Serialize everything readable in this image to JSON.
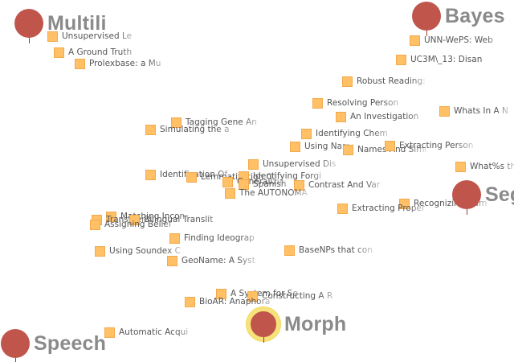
{
  "topics": [
    {
      "name": "Multili",
      "selected": false
    },
    {
      "name": "Bayes",
      "selected": false
    },
    {
      "name": "Seg",
      "selected": false
    },
    {
      "name": "Speech",
      "selected": false
    },
    {
      "name": "Morph",
      "selected": true
    }
  ],
  "documents": [
    {
      "title": "Unsupervised Le"
    },
    {
      "title": "A Ground Truth"
    },
    {
      "title": "Prolexbase: a Mu"
    },
    {
      "title": "UNN-WePS: Web"
    },
    {
      "title": "UC3M\\_13: Disan"
    },
    {
      "title": "Robust Reading:"
    },
    {
      "title": "Resolving Person"
    },
    {
      "title": "An Investigation"
    },
    {
      "title": "Whats In A N"
    },
    {
      "title": "Tagging Gene An"
    },
    {
      "title": "Simulating the a"
    },
    {
      "title": "Identifying Chem"
    },
    {
      "title": "Using Names A"
    },
    {
      "title": "Names And Simi"
    },
    {
      "title": "Extracting Person"
    },
    {
      "title": "Unsupervised Dis"
    },
    {
      "title": "What%s th"
    },
    {
      "title": "Identification Of"
    },
    {
      "title": "Lemmatization Of"
    },
    {
      "title": "Identifying Forgi"
    },
    {
      "title": "Generalizing"
    },
    {
      "title": "Spanish"
    },
    {
      "title": "Contrast And Var"
    },
    {
      "title": "The AUTONOMA"
    },
    {
      "title": "Recognizing Nam"
    },
    {
      "title": "Extracting Proper"
    },
    {
      "title": "Matching Incon"
    },
    {
      "title": "Transliteration"
    },
    {
      "title": "Bilingual Translit"
    },
    {
      "title": "Assigning Belief"
    },
    {
      "title": "Finding Ideograp"
    },
    {
      "title": "Using Soundex C"
    },
    {
      "title": "BaseNPs that con"
    },
    {
      "title": "GeoName: A Syst"
    },
    {
      "title": "A System for Se"
    },
    {
      "title": "Constructing A R"
    },
    {
      "title": "BioAR: Anaphora"
    },
    {
      "title": "Automatic Acqui"
    }
  ]
}
